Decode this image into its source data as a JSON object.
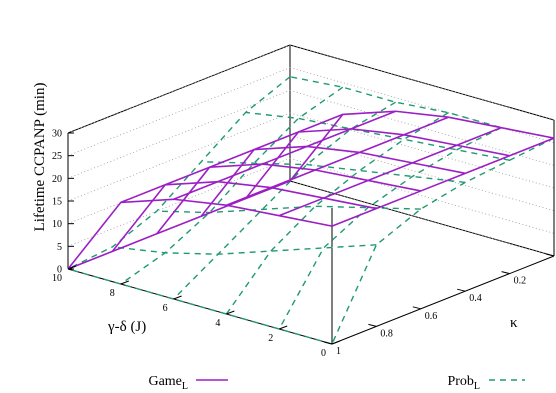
{
  "chart_data": {
    "type": "surface",
    "title": "",
    "xlabel": "κ",
    "ylabel": "γ-δ (J)",
    "zlabel": "Lifetime CCPANP (min)",
    "xlim": [
      0,
      1
    ],
    "ylim": [
      0,
      10
    ],
    "zlim": [
      0,
      30
    ],
    "x_ticks": [
      "0",
      "0.2",
      "0.4",
      "0.6",
      "0.8",
      "1"
    ],
    "y_ticks": [
      "0",
      "2",
      "4",
      "6",
      "8",
      "10"
    ],
    "z_ticks": [
      "0",
      "5",
      "10",
      "15",
      "20",
      "25",
      "30"
    ],
    "x": [
      0,
      0.2,
      0.4,
      0.6,
      0.8,
      1
    ],
    "y": [
      0,
      2,
      4,
      6,
      8,
      10
    ],
    "legend_position": "bottom",
    "series": [
      {
        "name": "Game",
        "name_sub": "L",
        "style": "solid",
        "color": "#9b1fc4",
        "z": [
          [
            26,
            26,
            26,
            26,
            26,
            26
          ],
          [
            25,
            25,
            25,
            25,
            25,
            25
          ],
          [
            24,
            24,
            24,
            24,
            24,
            24
          ],
          [
            22,
            22,
            22,
            22,
            22,
            22
          ],
          [
            18,
            18,
            18,
            18,
            18,
            18
          ],
          [
            0,
            0,
            0,
            0,
            0,
            0
          ]
        ]
      },
      {
        "name": "Prob",
        "name_sub": "L",
        "style": "dashed",
        "color": "#1f9a72",
        "z": [
          [
            26,
            25,
            24,
            22,
            18,
            0
          ],
          [
            25,
            24,
            22,
            19,
            14,
            0
          ],
          [
            25,
            23,
            20,
            16,
            10,
            0
          ],
          [
            24,
            22,
            18,
            12,
            6,
            0
          ],
          [
            24,
            21,
            15,
            8,
            3,
            0
          ],
          [
            23,
            19,
            12,
            5,
            1,
            0
          ]
        ]
      }
    ]
  }
}
